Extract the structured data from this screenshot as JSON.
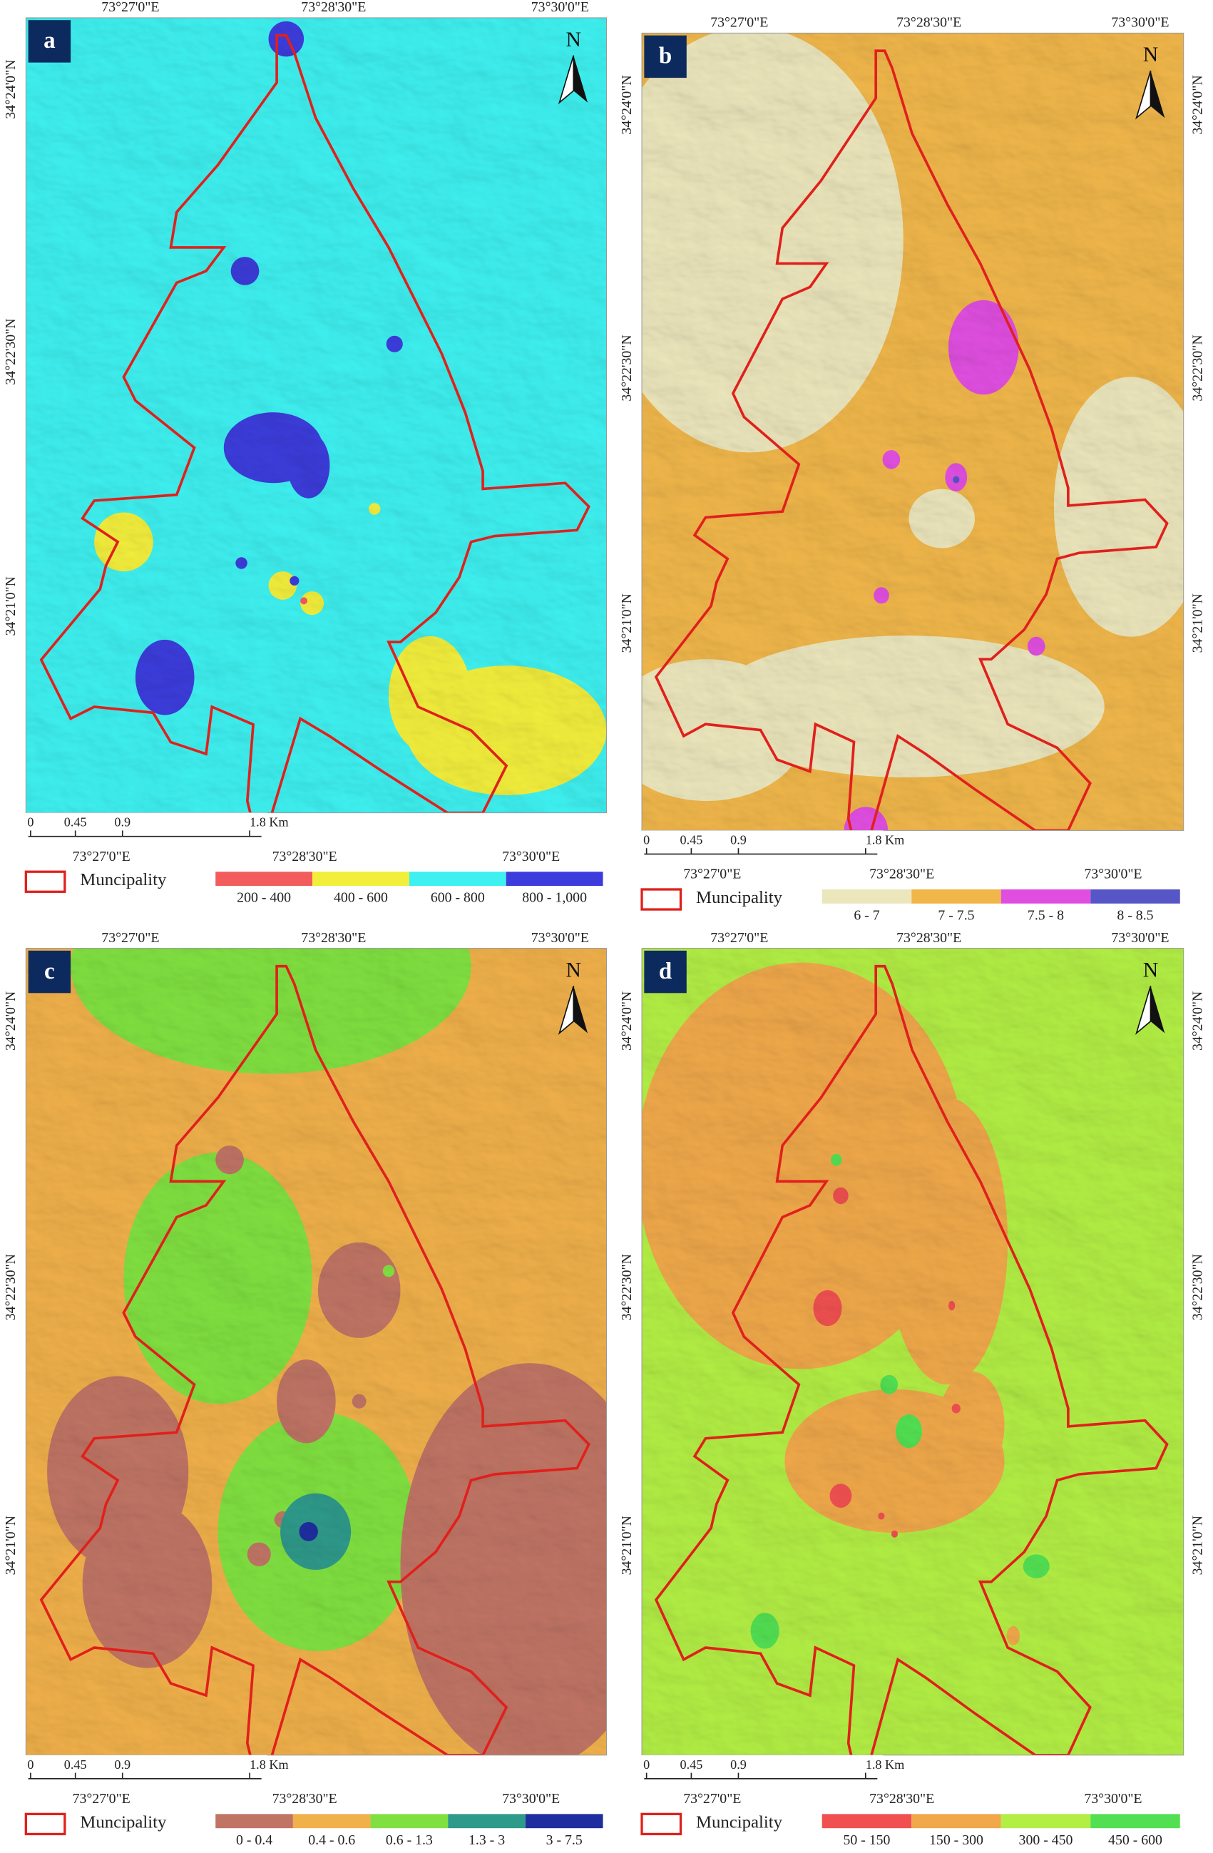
{
  "panels": [
    {
      "letter": "a",
      "top_labels": [
        "73°27'0\"E",
        "73°28'30\"E",
        "73°30'0\"E"
      ],
      "bottom_labels": [
        "73°27'0\"E",
        "73°28'30\"E",
        "73°30'0\"E"
      ],
      "left_labels": [
        "34°24'0\"N",
        "34°22'30\"N",
        "34°21'0\"N"
      ],
      "right_labels": [],
      "north": "N",
      "scale_labels": [
        "0",
        "0.45",
        "0.9",
        "1.8 Km"
      ],
      "legend_boundary": "Muncipality",
      "legend": [
        {
          "label": "200 - 400",
          "color": "#f25c5c"
        },
        {
          "label": "400 - 600",
          "color": "#f2ee3c"
        },
        {
          "label": "600 - 800",
          "color": "#3ef0f0"
        },
        {
          "label": "800 - 1,000",
          "color": "#3c3cdc"
        }
      ]
    },
    {
      "letter": "b",
      "top_labels": [
        "73°27'0\"E",
        "73°28'30\"E",
        "73°30'0\"E"
      ],
      "bottom_labels": [
        "73°27'0\"E",
        "73°28'30\"E",
        "73°30'0\"E"
      ],
      "left_labels": [
        "34°24'0\"N",
        "34°22'30\"N",
        "34°21'0\"N"
      ],
      "right_labels": [
        "34°24'0\"N",
        "34°22'30\"N",
        "34°21'0\"N"
      ],
      "north": "N",
      "scale_labels": [
        "0",
        "0.45",
        "0.9",
        "1.8 Km"
      ],
      "legend_boundary": "Muncipality",
      "legend": [
        {
          "label": "6 - 7",
          "color": "#ece6bc"
        },
        {
          "label": "7 - 7.5",
          "color": "#f0b64a"
        },
        {
          "label": "7.5 - 8",
          "color": "#e04ee0"
        },
        {
          "label": "8 - 8.5",
          "color": "#5656c6"
        }
      ]
    },
    {
      "letter": "c",
      "top_labels": [
        "73°27'0\"E",
        "73°28'30\"E",
        "73°30'0\"E"
      ],
      "bottom_labels": [
        "73°27'0\"E",
        "73°28'30\"E",
        "73°30'0\"E"
      ],
      "left_labels": [
        "34°24'0\"N",
        "34°22'30\"N",
        "34°21'0\"N"
      ],
      "right_labels": [],
      "north": "N",
      "scale_labels": [
        "0",
        "0.45",
        "0.9",
        "1.8 Km"
      ],
      "legend_boundary": "Muncipality",
      "legend": [
        {
          "label": "0 - 0.4",
          "color": "#c07464"
        },
        {
          "label": "0.4 - 0.6",
          "color": "#f0b04a"
        },
        {
          "label": "0.6 - 1.3",
          "color": "#80e040"
        },
        {
          "label": "1.3 - 3",
          "color": "#2e9a8a"
        },
        {
          "label": "3 - 7.5",
          "color": "#1e2e9e"
        }
      ]
    },
    {
      "letter": "d",
      "top_labels": [
        "73°27'0\"E",
        "73°28'30\"E",
        "73°30'0\"E"
      ],
      "bottom_labels": [
        "73°27'0\"E",
        "73°28'30\"E",
        "73°30'0\"E"
      ],
      "left_labels": [
        "34°24'0\"N",
        "34°22'30\"N",
        "34°21'0\"N"
      ],
      "right_labels": [
        "34°24'0\"N",
        "34°22'30\"N",
        "34°21'0\"N"
      ],
      "north": "N",
      "scale_labels": [
        "0",
        "0.45",
        "0.9",
        "1.8 Km"
      ],
      "legend_boundary": "Muncipality",
      "legend": [
        {
          "label": "50 - 150",
          "color": "#f05050"
        },
        {
          "label": "150 - 300",
          "color": "#f0a84a"
        },
        {
          "label": "300 - 450",
          "color": "#b2ee44"
        },
        {
          "label": "450 - 600",
          "color": "#52e052"
        }
      ]
    }
  ]
}
